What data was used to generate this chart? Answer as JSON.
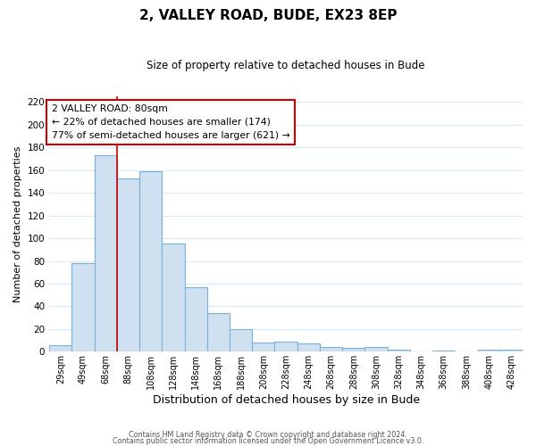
{
  "title": "2, VALLEY ROAD, BUDE, EX23 8EP",
  "subtitle": "Size of property relative to detached houses in Bude",
  "xlabel": "Distribution of detached houses by size in Bude",
  "ylabel": "Number of detached properties",
  "bar_color": "#cfe0f0",
  "bar_edge_color": "#7bb0d8",
  "bin_labels": [
    "29sqm",
    "49sqm",
    "68sqm",
    "88sqm",
    "108sqm",
    "128sqm",
    "148sqm",
    "168sqm",
    "188sqm",
    "208sqm",
    "228sqm",
    "248sqm",
    "268sqm",
    "288sqm",
    "308sqm",
    "328sqm",
    "348sqm",
    "368sqm",
    "388sqm",
    "408sqm",
    "428sqm"
  ],
  "bar_heights": [
    6,
    78,
    173,
    153,
    159,
    95,
    57,
    34,
    20,
    8,
    9,
    7,
    4,
    3,
    4,
    2,
    0,
    1,
    0,
    2,
    2
  ],
  "ylim": [
    0,
    225
  ],
  "yticks": [
    0,
    20,
    40,
    60,
    80,
    100,
    120,
    140,
    160,
    180,
    200,
    220
  ],
  "vline_x": 2.5,
  "annotation_title": "2 VALLEY ROAD: 80sqm",
  "annotation_line1": "← 22% of detached houses are smaller (174)",
  "annotation_line2": "77% of semi-detached houses are larger (621) →",
  "footer_line1": "Contains HM Land Registry data © Crown copyright and database right 2024.",
  "footer_line2": "Contains public sector information licensed under the Open Government Licence v3.0.",
  "grid_color": "#d8e8f4",
  "vline_color": "#cc0000",
  "annotation_border_color": "#cc0000",
  "background_color": "#ffffff",
  "title_fontsize": 11,
  "subtitle_fontsize": 8.5
}
